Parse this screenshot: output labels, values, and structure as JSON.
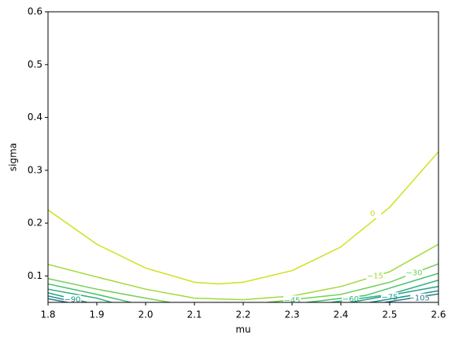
{
  "chart_data": {
    "type": "contour",
    "x_label": "mu",
    "y_label": "sigma",
    "xlim": [
      1.8,
      2.6
    ],
    "ylim": [
      0.05,
      0.6
    ],
    "xticks": [
      1.8,
      1.9,
      {
        "value": 2,
        "label": "2.0"
      },
      2.1,
      2.2,
      2.3,
      2.4,
      2.5,
      2.6
    ],
    "yticks": [
      0.1,
      0.2,
      0.3,
      0.4,
      0.5,
      0.6
    ],
    "series": [
      {
        "name": "0",
        "color": "#d0e11c",
        "x": [
          1.8,
          1.9,
          2.0,
          2.1,
          2.15,
          2.2,
          2.3,
          2.4,
          2.5,
          2.6
        ],
        "y": [
          0.225,
          0.16,
          0.115,
          0.088,
          0.085,
          0.088,
          0.11,
          0.155,
          0.23,
          0.335
        ],
        "label_at": [
          2.465,
          0.218
        ]
      },
      {
        "name": "−15",
        "color": "#a0da39",
        "x": [
          1.8,
          1.9,
          2.0,
          2.1,
          2.2,
          2.3,
          2.4,
          2.5,
          2.6
        ],
        "y": [
          0.122,
          0.098,
          0.075,
          0.058,
          0.055,
          0.062,
          0.08,
          0.108,
          0.16
        ],
        "label_at": [
          2.47,
          0.1
        ]
      },
      {
        "name": "−30",
        "color": "#73d056",
        "x": [
          1.8,
          1.9,
          2.0,
          2.05,
          null,
          2.25,
          2.4,
          2.5,
          2.6
        ],
        "y": [
          0.095,
          0.075,
          0.058,
          0.05,
          null,
          0.05,
          0.065,
          0.088,
          0.123
        ],
        "label_at": [
          2.55,
          0.106
        ]
      },
      {
        "name": "−45",
        "color": "#4ac16d",
        "x": [
          1.8,
          1.9,
          1.97,
          null,
          2.33,
          2.45,
          2.6
        ],
        "y": [
          0.085,
          0.065,
          0.05,
          null,
          0.05,
          0.063,
          0.105
        ],
        "label_at": [
          2.3,
          0.054
        ]
      },
      {
        "name": "−60",
        "color": "#2db27d",
        "x": [
          1.8,
          1.9,
          1.93,
          null,
          2.38,
          2.5,
          2.6
        ],
        "y": [
          0.075,
          0.058,
          0.05,
          null,
          0.05,
          0.065,
          0.092
        ],
        "label_at": [
          2.42,
          0.056
        ]
      },
      {
        "name": "−75",
        "color": "#1fa187",
        "x": [
          1.8,
          1.88,
          null,
          2.42,
          2.6
        ],
        "y": [
          0.068,
          0.05,
          null,
          0.05,
          0.08
        ],
        "label_at": [
          2.5,
          0.06
        ]
      },
      {
        "name": "−90",
        "color": "#21918c",
        "x": [
          1.8,
          1.86,
          null,
          2.46,
          2.6
        ],
        "y": [
          0.062,
          0.05,
          null,
          0.05,
          0.072
        ],
        "label_at": [
          1.85,
          0.055
        ]
      },
      {
        "name": "−105",
        "color": "#2a788e",
        "x": [
          1.8,
          1.84,
          null,
          2.49,
          2.6
        ],
        "y": [
          0.057,
          0.05,
          null,
          0.05,
          0.066
        ],
        "label_at": [
          2.56,
          0.058
        ]
      }
    ]
  }
}
